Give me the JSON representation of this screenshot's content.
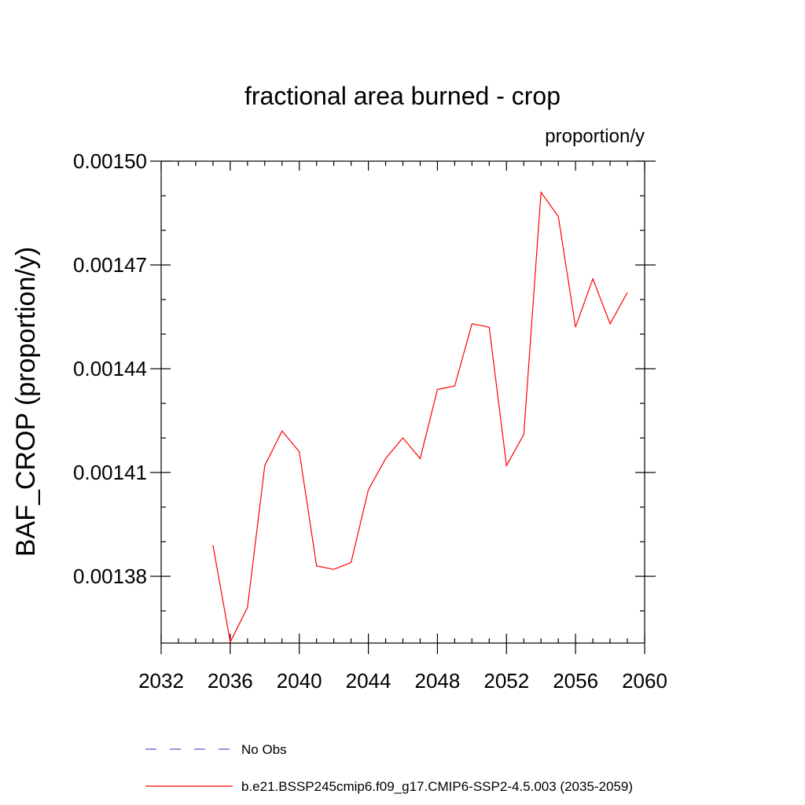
{
  "chart_data": {
    "type": "line",
    "title": "fractional area burned - crop",
    "units": "proportion/y",
    "ylabel": "BAF_CROP  (proportion/y)",
    "xlabel": "",
    "xlim": [
      2032,
      2060
    ],
    "ylim": [
      0.0013607,
      0.0015
    ],
    "x_ticks": [
      2032,
      2036,
      2040,
      2044,
      2048,
      2052,
      2056,
      2060
    ],
    "x_tick_labels": [
      "2032",
      "2036",
      "2040",
      "2044",
      "2048",
      "2052",
      "2056",
      "2060"
    ],
    "y_ticks": [
      0.00138,
      0.00141,
      0.00144,
      0.00147,
      0.0015
    ],
    "y_tick_labels": [
      "0.00138",
      "0.00141",
      "0.00144",
      "0.00147",
      "0.00150"
    ],
    "grid": false,
    "legend_position": "bottom",
    "series": [
      {
        "name": "No Obs",
        "color": "#5b5bc8",
        "dash": "dashed",
        "x": [],
        "y": []
      },
      {
        "name": "b.e21.BSSP245cmip6.f09_g17.CMIP6-SSP2-4.5.003 (2035-2059)",
        "color": "#ff0000",
        "dash": "solid",
        "x": [
          2035,
          2036,
          2037,
          2038,
          2039,
          2040,
          2041,
          2042,
          2043,
          2044,
          2045,
          2046,
          2047,
          2048,
          2049,
          2050,
          2051,
          2052,
          2053,
          2054,
          2055,
          2056,
          2057,
          2058,
          2059
        ],
        "y": [
          0.001389,
          0.001361,
          0.001371,
          0.001412,
          0.001422,
          0.001416,
          0.001383,
          0.001382,
          0.001384,
          0.001405,
          0.001414,
          0.00142,
          0.001414,
          0.001434,
          0.001435,
          0.001453,
          0.001452,
          0.001412,
          0.001421,
          0.001491,
          0.001484,
          0.001452,
          0.001466,
          0.001453,
          0.001462
        ]
      }
    ]
  }
}
